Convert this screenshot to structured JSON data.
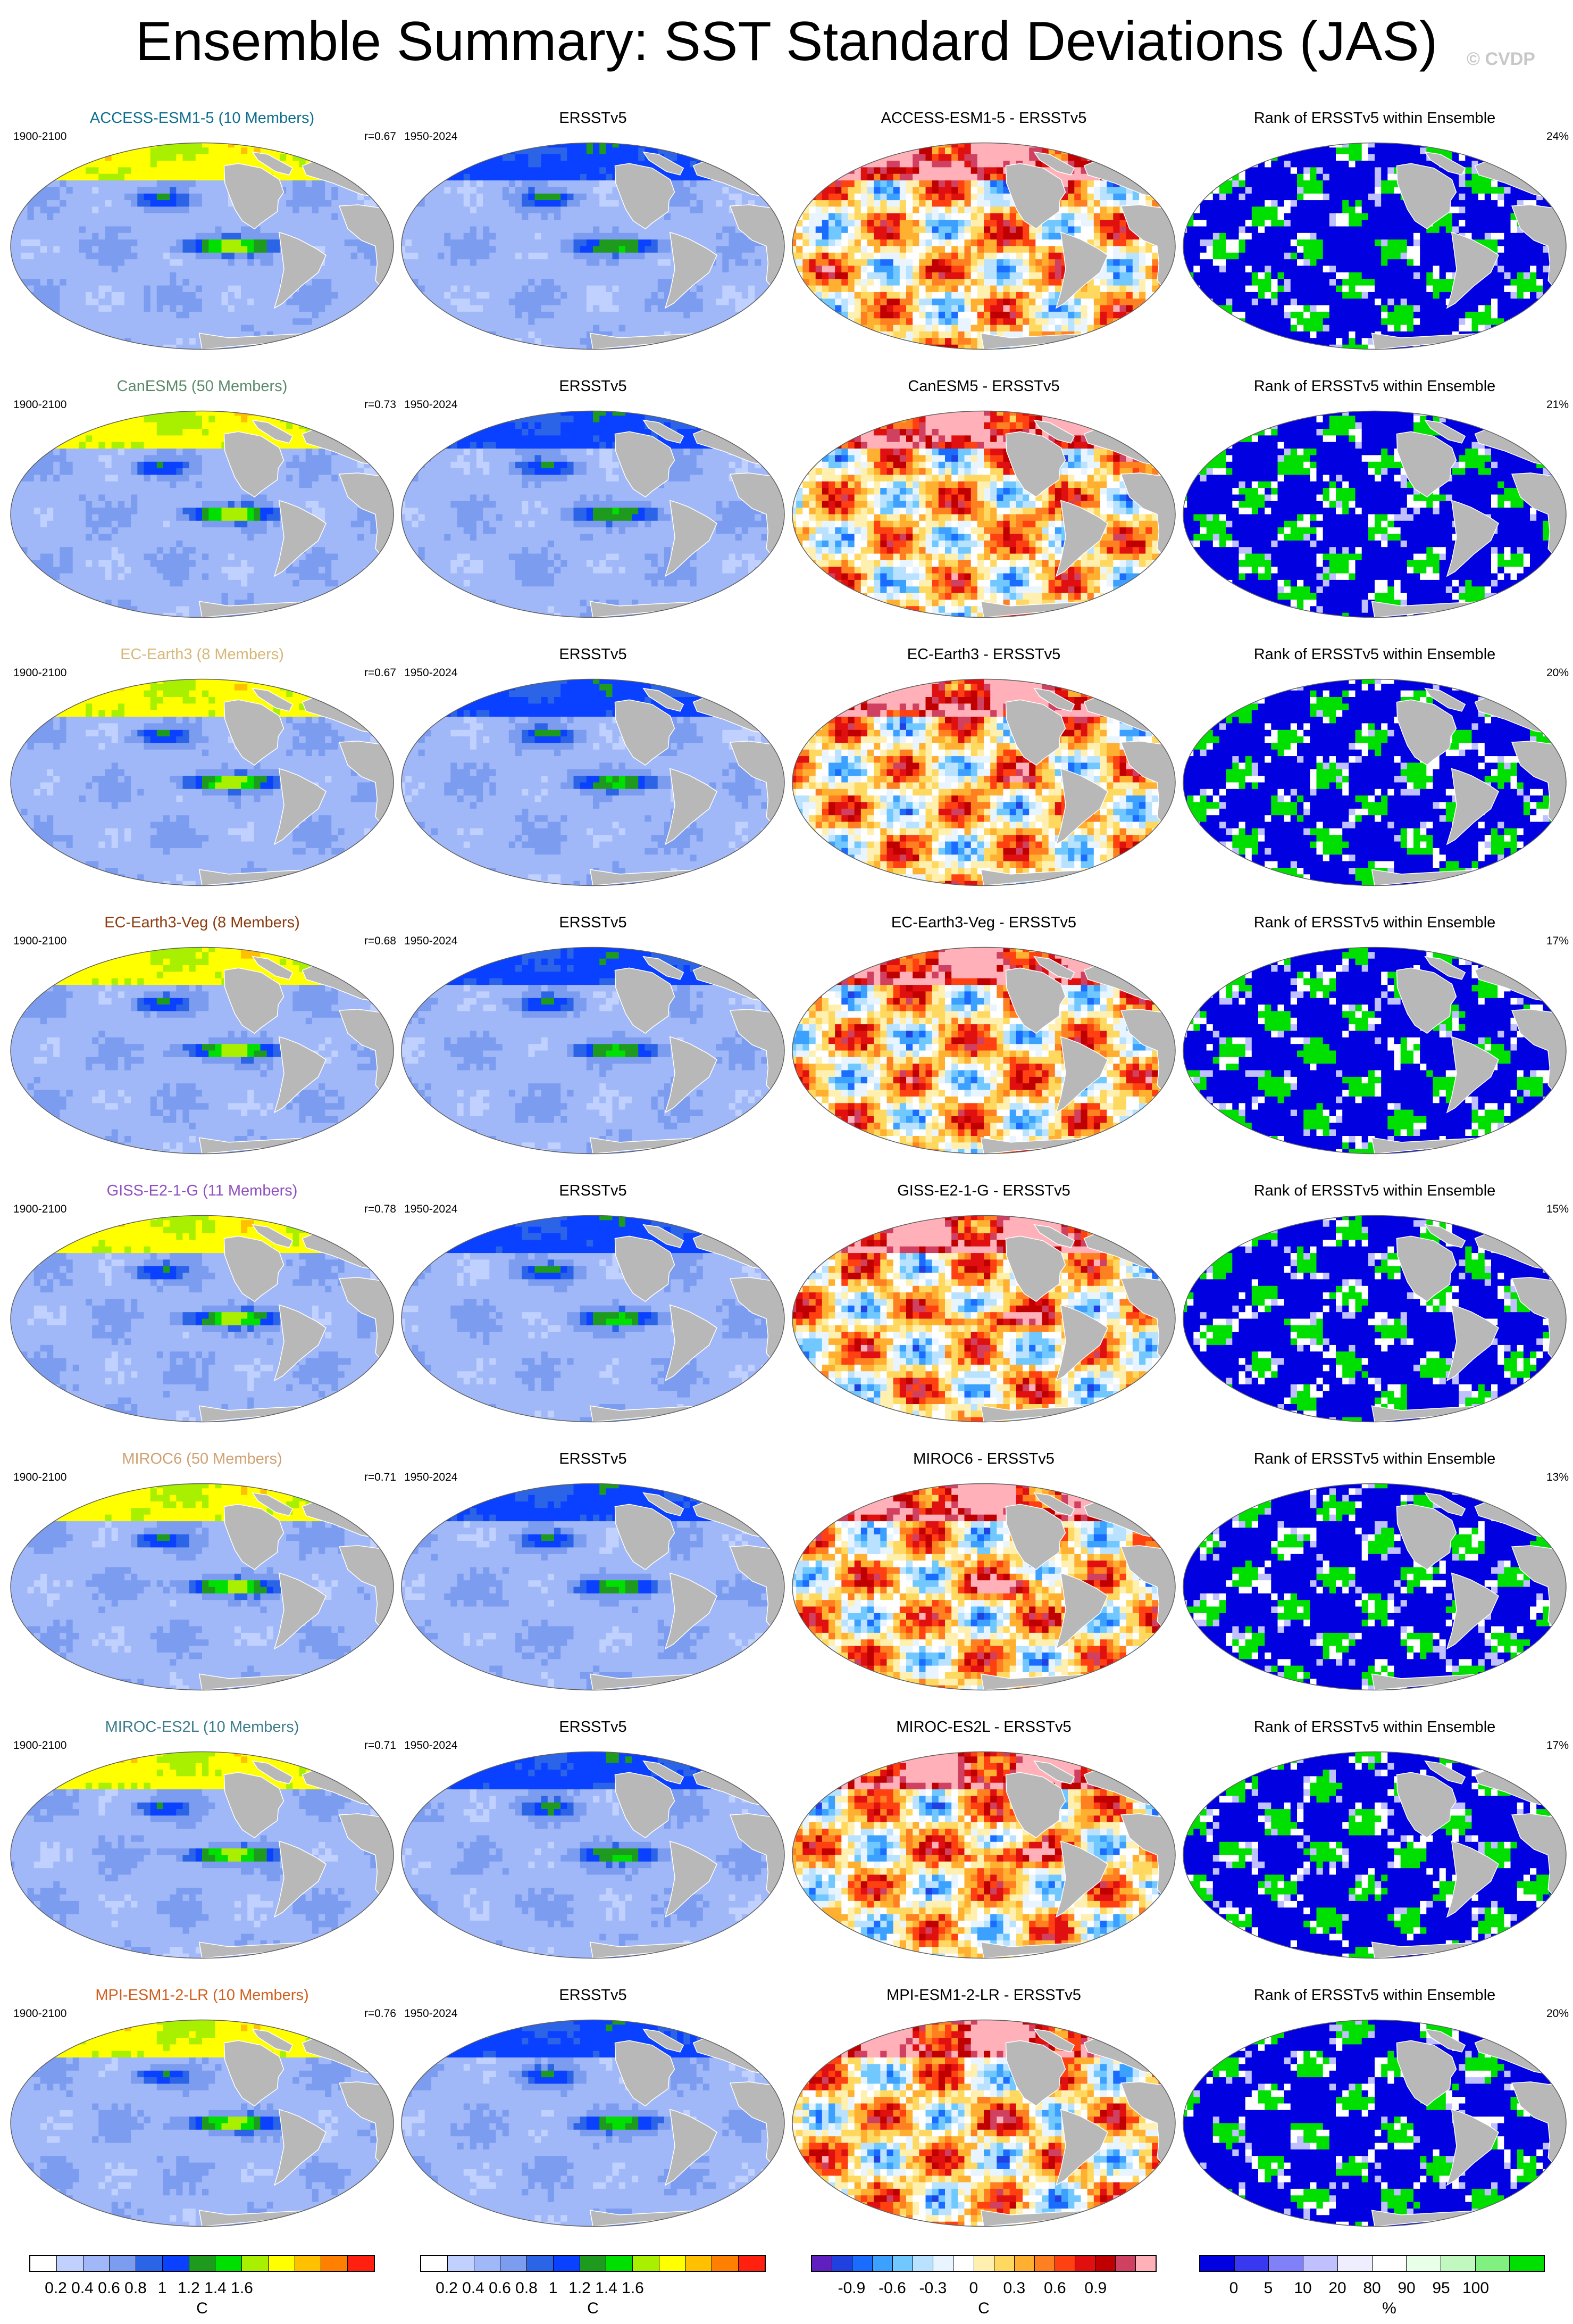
{
  "title": "Ensemble Summary: SST Standard Deviations (JAS)",
  "watermark": "© CVDP",
  "colors": {
    "land": "#b8b8b8",
    "coast": "#ffffff",
    "std_scale": [
      "#ffffff",
      "#c0d0ff",
      "#a0b8f8",
      "#7c9cf0",
      "#2c64e8",
      "#0a40ff",
      "#1e9a1e",
      "#00e000",
      "#a8f000",
      "#ffff00",
      "#ffc000",
      "#ff8000",
      "#ff2010"
    ],
    "diff_scale": [
      "#6020c0",
      "#2040e0",
      "#1a6cff",
      "#3ca0ff",
      "#70c8ff",
      "#b8e2ff",
      "#e8f4ff",
      "#ffffff",
      "#fff0b0",
      "#ffd860",
      "#ffb030",
      "#ff8020",
      "#ff4010",
      "#e01010",
      "#c00000",
      "#d04060",
      "#ffb0b8"
    ],
    "rank_scale": [
      "#0000e0",
      "#3838f0",
      "#8080f8",
      "#c0c0ff",
      "#eeeeff",
      "#ffffff",
      "#e8ffe8",
      "#c0f8c0",
      "#80f080",
      "#00e000"
    ]
  },
  "column_titles": {
    "obs": "ERSSTv5",
    "rank": "Rank of ERSSTv5 within Ensemble"
  },
  "periods": {
    "model": "1900-2100",
    "obs": "1950-2024"
  },
  "models": [
    {
      "name": "ACCESS-ESM1-5",
      "label": "ACCESS-ESM1-5 (10 Members)",
      "color": "#0e6f90",
      "r": "r=0.67",
      "rank_pct": "24%",
      "diff_title": "ACCESS-ESM1-5 - ERSSTv5"
    },
    {
      "name": "CanESM5",
      "label": "CanESM5 (50 Members)",
      "color": "#5b8a6a",
      "r": "r=0.73",
      "rank_pct": "21%",
      "diff_title": "CanESM5 - ERSSTv5"
    },
    {
      "name": "EC-Earth3",
      "label": "EC-Earth3 (8 Members)",
      "color": "#d8b878",
      "r": "r=0.67",
      "rank_pct": "20%",
      "diff_title": "EC-Earth3 - ERSSTv5"
    },
    {
      "name": "EC-Earth3-Veg",
      "label": "EC-Earth3-Veg (8 Members)",
      "color": "#8c3c10",
      "r": "r=0.68",
      "rank_pct": "17%",
      "diff_title": "EC-Earth3-Veg - ERSSTv5"
    },
    {
      "name": "GISS-E2-1-G",
      "label": "GISS-E2-1-G (11 Members)",
      "color": "#9050c0",
      "r": "r=0.78",
      "rank_pct": "15%",
      "diff_title": "GISS-E2-1-G - ERSSTv5"
    },
    {
      "name": "MIROC6",
      "label": "MIROC6 (50 Members)",
      "color": "#d0a070",
      "r": "r=0.71",
      "rank_pct": "13%",
      "diff_title": "MIROC6 - ERSSTv5"
    },
    {
      "name": "MIROC-ES2L",
      "label": "MIROC-ES2L (10 Members)",
      "color": "#3c7c8c",
      "r": "r=0.71",
      "rank_pct": "17%",
      "diff_title": "MIROC-ES2L - ERSSTv5"
    },
    {
      "name": "MPI-ESM1-2-LR",
      "label": "MPI-ESM1-2-LR (10 Members)",
      "color": "#d06020",
      "r": "r=0.76",
      "rank_pct": "20%",
      "diff_title": "MPI-ESM1-2-LR - ERSSTv5"
    }
  ],
  "colorbars": [
    {
      "name": "std",
      "unit": "C",
      "ticks": [
        "0.2",
        "0.4",
        "0.6",
        "0.8",
        "1",
        "1.2",
        "1.4",
        "1.6"
      ]
    },
    {
      "name": "std-obs",
      "unit": "C",
      "ticks": [
        "0.2",
        "0.4",
        "0.6",
        "0.8",
        "1",
        "1.2",
        "1.4",
        "1.6"
      ]
    },
    {
      "name": "diff",
      "unit": "C",
      "ticks": [
        "-0.9",
        "-0.6",
        "-0.3",
        "0",
        "0.3",
        "0.6",
        "0.9"
      ]
    },
    {
      "name": "rank",
      "unit": "%",
      "ticks": [
        "0",
        "5",
        "10",
        "20",
        "80",
        "90",
        "95",
        "100"
      ]
    }
  ],
  "chart_data": {
    "type": "heatmap",
    "title": "Ensemble Summary: SST Standard Deviations (JAS)",
    "projection": "global map panels, 8 rows x 4 columns",
    "columns": [
      "model ensemble-mean SST std (1900-2100)",
      "ERSSTv5 SST std (1950-2024)",
      "model minus ERSSTv5",
      "rank of ERSSTv5 within ensemble"
    ],
    "std_levels": [
      0.1,
      0.2,
      0.3,
      0.4,
      0.5,
      0.6,
      0.7,
      0.8,
      1.0,
      1.2,
      1.4,
      1.6
    ],
    "diff_levels": [
      -0.9,
      -0.6,
      -0.3,
      0,
      0.3,
      0.6,
      0.9
    ],
    "rank_levels": [
      0,
      5,
      10,
      20,
      80,
      90,
      95,
      100
    ],
    "series": [
      {
        "name": "ACCESS-ESM1-5 (10 Members)",
        "pattern_correlation": 0.67,
        "rank_area_pct": 24
      },
      {
        "name": "CanESM5 (50 Members)",
        "pattern_correlation": 0.73,
        "rank_area_pct": 21
      },
      {
        "name": "EC-Earth3 (8 Members)",
        "pattern_correlation": 0.67,
        "rank_area_pct": 20
      },
      {
        "name": "EC-Earth3-Veg (8 Members)",
        "pattern_correlation": 0.68,
        "rank_area_pct": 17
      },
      {
        "name": "GISS-E2-1-G (11 Members)",
        "pattern_correlation": 0.78,
        "rank_area_pct": 15
      },
      {
        "name": "MIROC6 (50 Members)",
        "pattern_correlation": 0.71,
        "rank_area_pct": 13
      },
      {
        "name": "MIROC-ES2L (10 Members)",
        "pattern_correlation": 0.71,
        "rank_area_pct": 17
      },
      {
        "name": "MPI-ESM1-2-LR (10 Members)",
        "pattern_correlation": 0.76,
        "rank_area_pct": 20
      }
    ]
  }
}
